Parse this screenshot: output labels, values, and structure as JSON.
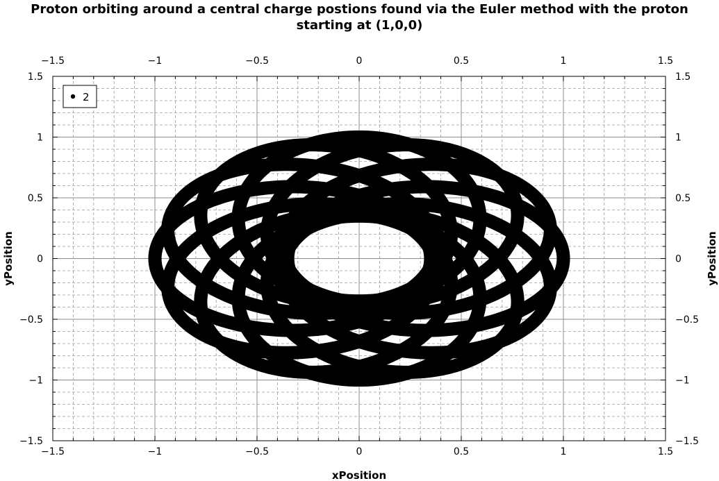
{
  "chart_data": {
    "type": "scatter",
    "title_lines": [
      "Proton orbiting around a central charge postions found via the Euler method with the proton",
      "starting at (1,0,0)"
    ],
    "xlabel": "xPosition",
    "ylabel": "yPosition",
    "xlim": [
      -1.5,
      1.5
    ],
    "ylim": [
      -1.5,
      1.5
    ],
    "xticks": [
      -1.5,
      -1,
      -0.5,
      0,
      0.5,
      1,
      1.5
    ],
    "yticks": [
      -1.5,
      -1,
      -0.5,
      0,
      0.5,
      1,
      1.5
    ],
    "xtick_labels": [
      "−1.5",
      "−1",
      "−0.5",
      "0",
      "0.5",
      "1",
      "1.5"
    ],
    "ytick_labels": [
      "−1.5",
      "−1",
      "−0.5",
      "0",
      "0.5",
      "1",
      "1.5"
    ],
    "grid": true,
    "minor_grid": true,
    "mirror_axes": true,
    "legend_position": "top-left",
    "series": [
      {
        "name": "2",
        "color": "#000000",
        "marker": "dot",
        "orbit": {
          "apoapsis": 1.0,
          "periapsis": 0.35,
          "lobes": 12,
          "orientation_start_deg": 0,
          "precession_per_lobe_deg": 30,
          "band_thickness": 0.065
        }
      }
    ]
  }
}
